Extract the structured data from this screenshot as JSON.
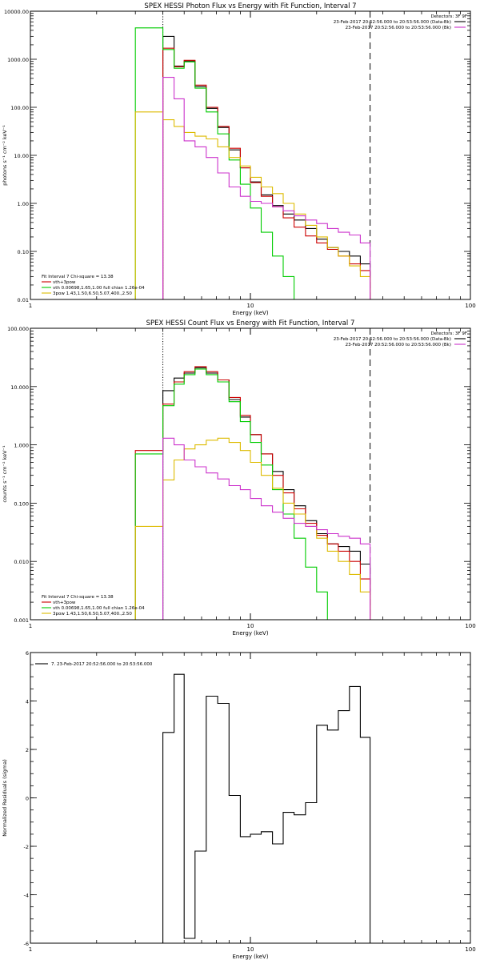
{
  "chart_data": [
    {
      "type": "line",
      "title": "SPEX HESSI Photon Flux vs Energy with Fit Function, Interval 7",
      "xlabel": "Energy (keV)",
      "ylabel": "photons s⁻¹ cm⁻² keV⁻¹",
      "xscale": "log",
      "yscale": "log",
      "xlim": [
        1,
        100
      ],
      "ylim": [
        0.01,
        10000
      ],
      "xticks": [
        "1",
        "10",
        "100"
      ],
      "yticks": [
        "0.01",
        "0.10",
        "1.00",
        "10.00",
        "100.00",
        "1000.00",
        "10000.00"
      ],
      "vlines": [
        {
          "x": 4,
          "style": "dotted"
        },
        {
          "x": 35,
          "style": "dashed"
        }
      ],
      "legend_top": {
        "header": "Detectors: 3F 9F",
        "entries": [
          {
            "label": "23-Feb-2017 20:52:56.000 to 20:53:56.000 (Data-Bk)",
            "color": "#000000"
          },
          {
            "label": "23-Feb-2017 20:52:56.000 to 20:53:56.000 (Bk)",
            "color": "#cc33cc"
          }
        ]
      },
      "legend_bottom": {
        "header": "Fit Interval 7   Chi-square = 13.38",
        "entries": [
          {
            "label": "vth+3pow",
            "color": "#cc0000"
          },
          {
            "label": "vth 0.00698,1.65,1.00  full chian 1.26e-04",
            "color": "#00cc00"
          },
          {
            "label": "3pow 1.43,1.50,6.50,5.07,400.,2.50",
            "color": "#ddbb00"
          }
        ]
      },
      "edges": [
        3,
        4,
        4.5,
        5,
        5.6,
        6.3,
        7.1,
        8,
        9,
        10,
        11.2,
        12.6,
        14.1,
        15.8,
        17.8,
        20,
        22.4,
        25.1,
        28.2,
        31.6,
        35
      ],
      "series": [
        {
          "name": "data",
          "color": "#000000",
          "values": [
            null,
            3000,
            720,
            920,
            270,
            95,
            38,
            13,
            5.5,
            2.8,
            1.5,
            0.9,
            0.6,
            0.45,
            0.3,
            0.18,
            0.12,
            0.1,
            0.08,
            0.055
          ]
        },
        {
          "name": "vth+3pow",
          "color": "#cc0000",
          "values": [
            null,
            1700,
            700,
            950,
            290,
            100,
            40,
            14,
            5.5,
            2.7,
            1.4,
            0.85,
            0.5,
            0.32,
            0.21,
            0.15,
            0.11,
            0.08,
            0.055,
            0.04
          ]
        },
        {
          "name": "vth",
          "color": "#00cc00",
          "values": [
            4500,
            1600,
            650,
            880,
            250,
            80,
            28,
            8,
            2.5,
            0.8,
            0.25,
            0.08,
            0.03,
            0.01,
            null,
            null,
            null,
            null,
            null,
            null
          ]
        },
        {
          "name": "3pow",
          "color": "#ddbb00",
          "values": [
            80,
            55,
            40,
            30,
            25,
            22,
            15,
            9,
            6,
            3.5,
            2.2,
            1.6,
            1.0,
            0.6,
            0.35,
            0.2,
            0.12,
            0.08,
            0.05,
            0.03
          ]
        },
        {
          "name": "Bk",
          "color": "#cc33cc",
          "values": [
            null,
            420,
            150,
            20,
            15,
            9,
            4.3,
            2.2,
            1.4,
            1.1,
            1.0,
            0.85,
            0.7,
            0.55,
            0.45,
            0.38,
            0.3,
            0.25,
            0.22,
            0.15
          ]
        }
      ]
    },
    {
      "type": "line",
      "title": "SPEX HESSI Count Flux vs Energy with Fit Function, Interval 7",
      "xlabel": "Energy (keV)",
      "ylabel": "counts s⁻¹ cm⁻² keV⁻¹",
      "xscale": "log",
      "yscale": "log",
      "xlim": [
        1,
        100
      ],
      "ylim": [
        0.001,
        100
      ],
      "xticks": [
        "1",
        "10",
        "100"
      ],
      "yticks": [
        "0.001",
        "0.010",
        "0.100",
        "1.000",
        "10.000",
        "100.000"
      ],
      "vlines": [
        {
          "x": 4,
          "style": "dotted"
        },
        {
          "x": 35,
          "style": "dashed"
        }
      ],
      "legend_top": {
        "header": "Detectors: 3F 9F",
        "entries": [
          {
            "label": "23-Feb-2017 20:52:56.000 to 20:53:56.000 (Data-Bk)",
            "color": "#000000"
          },
          {
            "label": "23-Feb-2017 20:52:56.000 to 20:53:56.000 (Bk)",
            "color": "#cc33cc"
          }
        ]
      },
      "legend_bottom": {
        "header": "Fit Interval 7   Chi-square = 13.38",
        "entries": [
          {
            "label": "vth+3pow",
            "color": "#cc0000"
          },
          {
            "label": "vth 0.00698,1.65,1.00  full chian 1.26e-04",
            "color": "#00cc00"
          },
          {
            "label": "3pow 1.43,1.50,6.50,5.07,400.,2.50",
            "color": "#ddbb00"
          }
        ]
      },
      "edges": [
        3,
        4,
        4.5,
        5,
        5.6,
        6.3,
        7.1,
        8,
        9,
        10,
        11.2,
        12.6,
        14.1,
        15.8,
        17.8,
        20,
        22.4,
        25.1,
        28.2,
        31.6,
        35,
        40
      ],
      "series": [
        {
          "name": "data",
          "color": "#000000",
          "values": [
            null,
            8.5,
            14,
            17,
            21,
            17,
            13,
            6,
            3,
            1.5,
            0.7,
            0.35,
            0.17,
            0.09,
            0.05,
            0.03,
            0.02,
            0.018,
            0.015,
            0.009,
            null
          ]
        },
        {
          "name": "vth+3pow",
          "color": "#cc0000",
          "values": [
            0.8,
            5,
            12,
            18,
            22,
            18,
            13,
            6.5,
            3.2,
            1.5,
            0.7,
            0.3,
            0.15,
            0.08,
            0.045,
            0.028,
            0.02,
            0.015,
            0.01,
            0.005,
            0.001
          ]
        },
        {
          "name": "vth",
          "color": "#00cc00",
          "values": [
            0.7,
            4.7,
            11,
            16,
            20,
            16,
            12,
            5.5,
            2.5,
            1.1,
            0.45,
            0.17,
            0.065,
            0.025,
            0.008,
            0.003,
            0.001,
            null,
            null,
            null,
            null
          ]
        },
        {
          "name": "3pow",
          "color": "#ddbb00",
          "values": [
            0.04,
            0.25,
            0.55,
            0.85,
            1.0,
            1.2,
            1.3,
            1.1,
            0.8,
            0.5,
            0.3,
            0.18,
            0.1,
            0.065,
            0.04,
            0.025,
            0.015,
            0.01,
            0.006,
            0.003,
            0.001
          ]
        },
        {
          "name": "Bk",
          "color": "#cc33cc",
          "values": [
            null,
            1.3,
            1.0,
            0.55,
            0.42,
            0.33,
            0.26,
            0.2,
            0.17,
            0.12,
            0.09,
            0.07,
            0.055,
            0.045,
            0.04,
            0.035,
            0.03,
            0.027,
            0.025,
            0.02,
            null
          ]
        }
      ]
    },
    {
      "type": "line",
      "title": "",
      "xlabel": "Energy (keV)",
      "ylabel": "Normalized Residuals (sigma)",
      "xscale": "log",
      "yscale": "linear",
      "xlim": [
        1,
        100
      ],
      "ylim": [
        -6,
        6
      ],
      "xticks": [
        "1",
        "10",
        "100"
      ],
      "yticks": [
        "-6",
        "-4",
        "-2",
        "0",
        "2",
        "4",
        "6"
      ],
      "legend_top": {
        "header": "",
        "entries": [
          {
            "label": "7. 23-Feb-2017 20:52:56.000 to 20:53:56.000",
            "color": "#000000"
          }
        ]
      },
      "edges": [
        4,
        4.5,
        5,
        5.6,
        6.3,
        7.1,
        8,
        9,
        10,
        11.2,
        12.6,
        14.1,
        15.8,
        17.8,
        20,
        22.4,
        25.1,
        28.2,
        31.6,
        35
      ],
      "series": [
        {
          "name": "7. 23-Feb-2017 20:52:56.000 to 20:53:56.000",
          "color": "#000000",
          "values": [
            2.7,
            5.1,
            -5.8,
            -2.2,
            4.2,
            3.9,
            0.1,
            -1.6,
            -1.5,
            -1.4,
            -1.9,
            -0.6,
            -0.7,
            -0.2,
            3.0,
            2.8,
            3.6,
            4.6,
            2.5
          ]
        }
      ]
    }
  ]
}
